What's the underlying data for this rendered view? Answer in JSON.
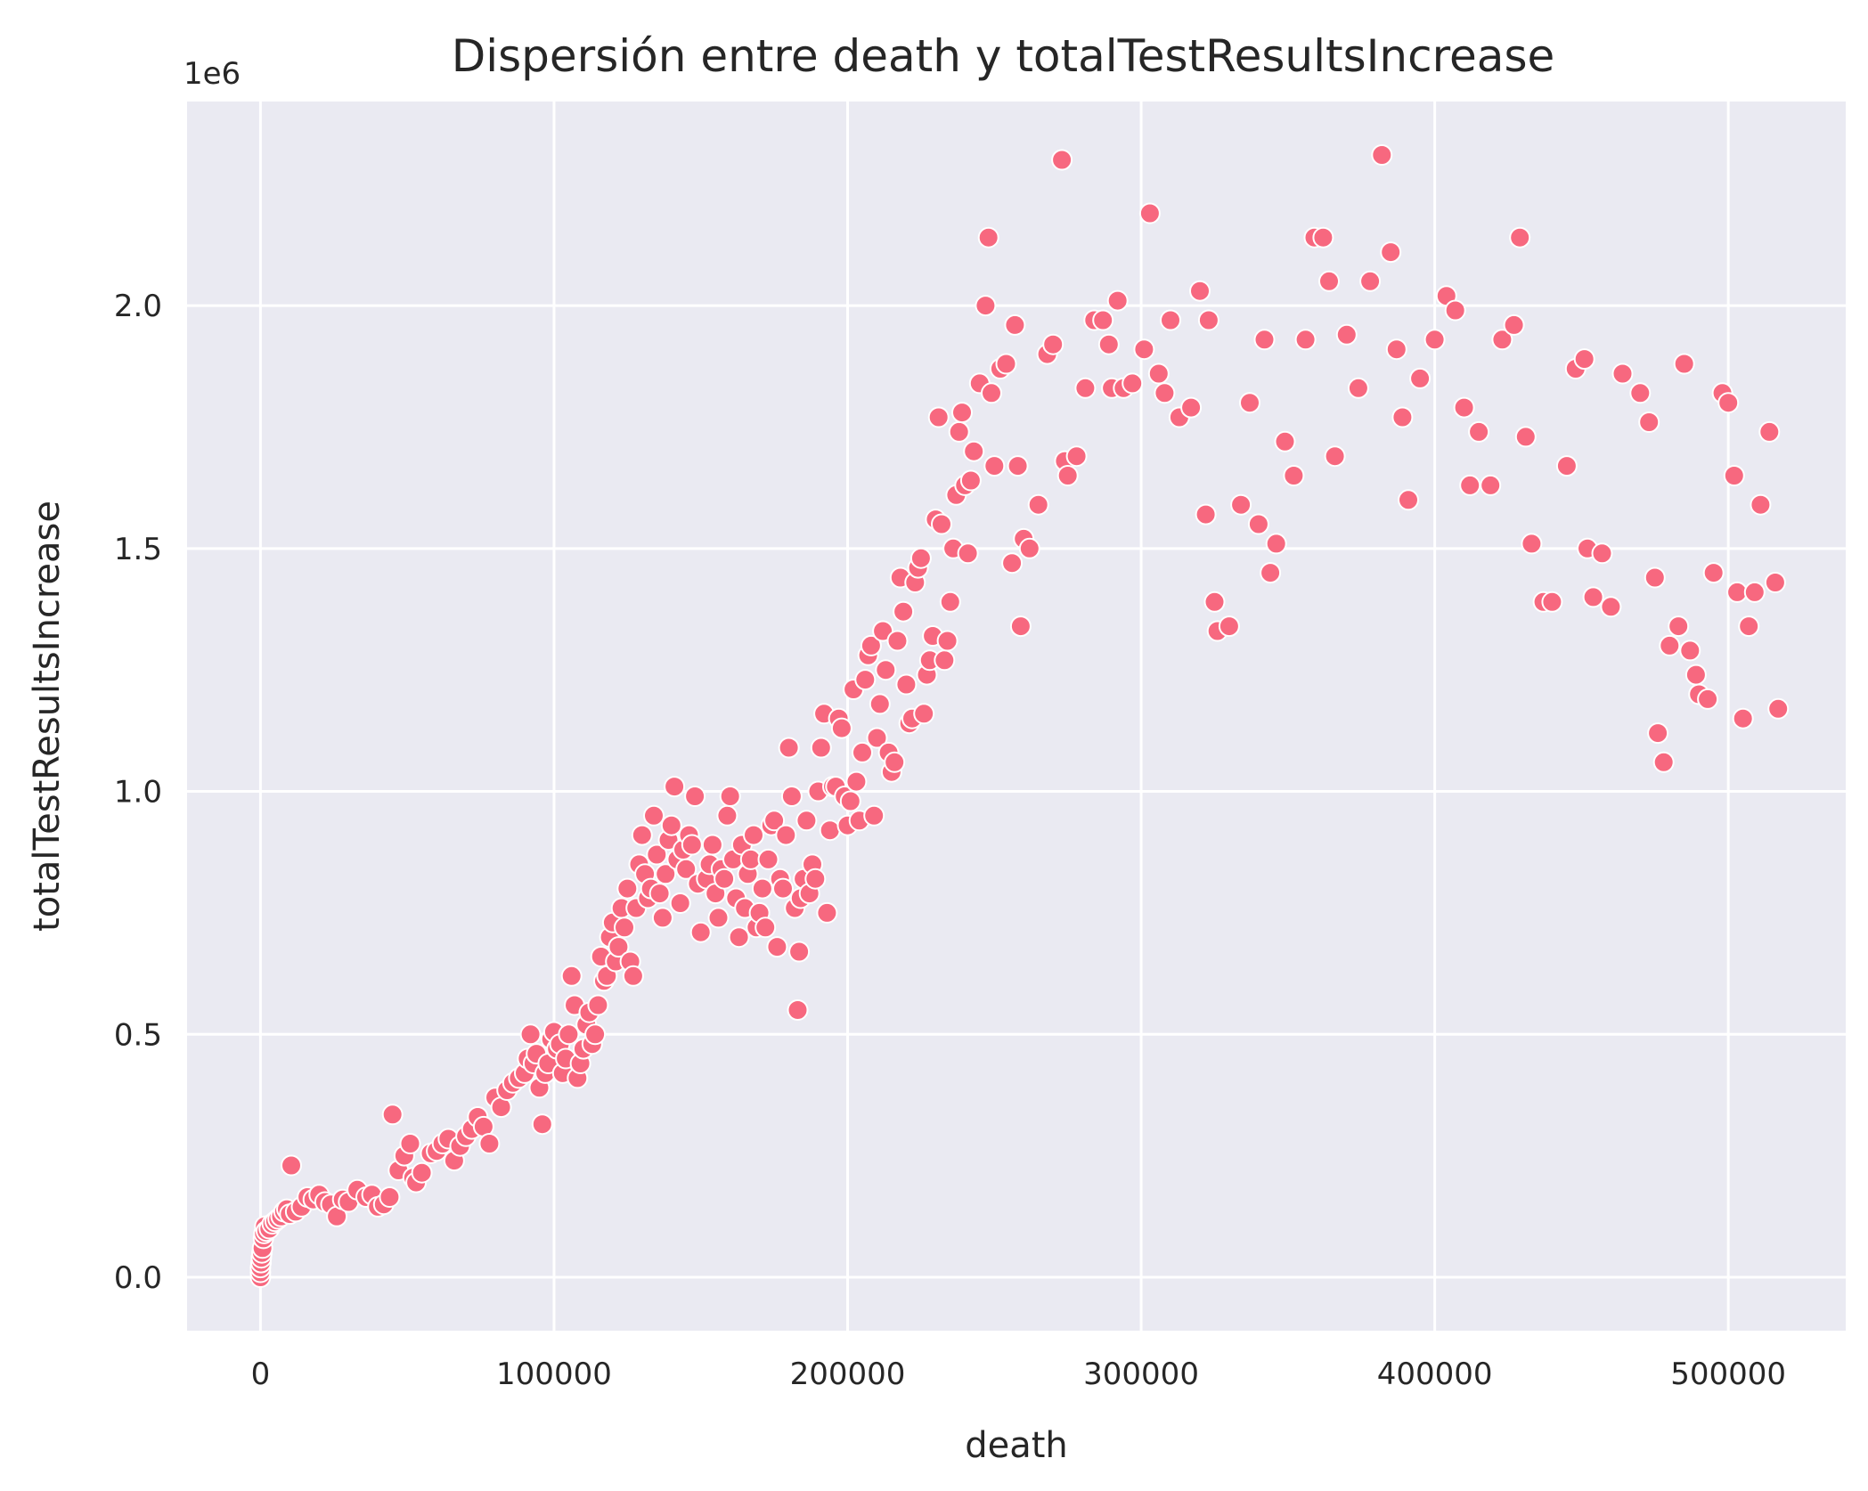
{
  "chart_data": {
    "type": "scatter",
    "title": "Dispersión entre death y totalTestResultsIncrease",
    "xlabel": "death",
    "ylabel": "totalTestResultsIncrease",
    "y_offset_label": "1e6",
    "xlim": [
      -25000,
      540000
    ],
    "ylim": [
      -110000,
      2420000
    ],
    "xticks": [
      0,
      100000,
      200000,
      300000,
      400000,
      500000
    ],
    "xtick_labels": [
      "0",
      "100000",
      "200000",
      "300000",
      "400000",
      "500000"
    ],
    "yticks": [
      0,
      500000,
      1000000,
      1500000,
      2000000
    ],
    "ytick_labels": [
      "0.0",
      "0.5",
      "1.0",
      "1.5",
      "2.0"
    ],
    "grid": true,
    "colors": {
      "background": "#eaeaf2",
      "grid": "#ffffff",
      "marker": "#f7687f",
      "marker_edge": "#ffffff",
      "text": "#262626"
    },
    "points": [
      [
        0,
        0
      ],
      [
        0,
        10000
      ],
      [
        0,
        20000
      ],
      [
        200,
        30000
      ],
      [
        300,
        40000
      ],
      [
        500,
        50000
      ],
      [
        700,
        60000
      ],
      [
        1000,
        80000
      ],
      [
        1200,
        90000
      ],
      [
        1500,
        105000
      ],
      [
        2000,
        95000
      ],
      [
        3000,
        100000
      ],
      [
        4000,
        110000
      ],
      [
        5000,
        115000
      ],
      [
        6000,
        120000
      ],
      [
        7000,
        125000
      ],
      [
        8000,
        135000
      ],
      [
        9000,
        140000
      ],
      [
        10000,
        130000
      ],
      [
        10500,
        230000
      ],
      [
        12000,
        135000
      ],
      [
        14000,
        145000
      ],
      [
        16000,
        165000
      ],
      [
        18000,
        160000
      ],
      [
        20000,
        170000
      ],
      [
        22000,
        155000
      ],
      [
        24000,
        150000
      ],
      [
        26000,
        125000
      ],
      [
        28000,
        160000
      ],
      [
        30000,
        155000
      ],
      [
        33000,
        180000
      ],
      [
        36000,
        165000
      ],
      [
        38000,
        170000
      ],
      [
        40000,
        145000
      ],
      [
        42000,
        150000
      ],
      [
        44000,
        165000
      ],
      [
        45000,
        335000
      ],
      [
        47000,
        220000
      ],
      [
        49000,
        250000
      ],
      [
        51000,
        275000
      ],
      [
        52000,
        205000
      ],
      [
        53000,
        195000
      ],
      [
        55000,
        215000
      ],
      [
        58000,
        255000
      ],
      [
        60000,
        260000
      ],
      [
        62000,
        275000
      ],
      [
        64000,
        285000
      ],
      [
        66000,
        240000
      ],
      [
        68000,
        270000
      ],
      [
        70000,
        290000
      ],
      [
        72000,
        305000
      ],
      [
        74000,
        330000
      ],
      [
        76000,
        310000
      ],
      [
        78000,
        275000
      ],
      [
        80000,
        370000
      ],
      [
        82000,
        350000
      ],
      [
        84000,
        385000
      ],
      [
        86000,
        400000
      ],
      [
        88000,
        410000
      ],
      [
        90000,
        420000
      ],
      [
        91000,
        450000
      ],
      [
        92000,
        500000
      ],
      [
        93000,
        440000
      ],
      [
        94000,
        460000
      ],
      [
        95000,
        390000
      ],
      [
        96000,
        315000
      ],
      [
        97000,
        420000
      ],
      [
        98000,
        440000
      ],
      [
        99000,
        490000
      ],
      [
        100000,
        505000
      ],
      [
        101000,
        470000
      ],
      [
        102000,
        480000
      ],
      [
        103000,
        420000
      ],
      [
        104000,
        450000
      ],
      [
        105000,
        500000
      ],
      [
        106000,
        620000
      ],
      [
        107000,
        560000
      ],
      [
        108000,
        410000
      ],
      [
        109000,
        440000
      ],
      [
        110000,
        470000
      ],
      [
        111000,
        520000
      ],
      [
        112000,
        545000
      ],
      [
        113000,
        480000
      ],
      [
        114000,
        500000
      ],
      [
        115000,
        560000
      ],
      [
        116000,
        660000
      ],
      [
        117000,
        610000
      ],
      [
        118000,
        620000
      ],
      [
        119000,
        700000
      ],
      [
        120000,
        730000
      ],
      [
        121000,
        650000
      ],
      [
        122000,
        680000
      ],
      [
        123000,
        760000
      ],
      [
        124000,
        720000
      ],
      [
        125000,
        800000
      ],
      [
        126000,
        650000
      ],
      [
        127000,
        620000
      ],
      [
        128000,
        760000
      ],
      [
        129000,
        850000
      ],
      [
        130000,
        910000
      ],
      [
        131000,
        830000
      ],
      [
        132000,
        780000
      ],
      [
        133000,
        800000
      ],
      [
        134000,
        950000
      ],
      [
        135000,
        870000
      ],
      [
        136000,
        790000
      ],
      [
        137000,
        740000
      ],
      [
        138000,
        830000
      ],
      [
        139000,
        900000
      ],
      [
        140000,
        930000
      ],
      [
        141000,
        1010000
      ],
      [
        142000,
        860000
      ],
      [
        143000,
        770000
      ],
      [
        144000,
        880000
      ],
      [
        145000,
        840000
      ],
      [
        146000,
        910000
      ],
      [
        147000,
        890000
      ],
      [
        148000,
        990000
      ],
      [
        149000,
        810000
      ],
      [
        150000,
        710000
      ],
      [
        152000,
        820000
      ],
      [
        153000,
        850000
      ],
      [
        154000,
        890000
      ],
      [
        155000,
        790000
      ],
      [
        156000,
        740000
      ],
      [
        157000,
        840000
      ],
      [
        158000,
        820000
      ],
      [
        159000,
        950000
      ],
      [
        160000,
        990000
      ],
      [
        161000,
        860000
      ],
      [
        162000,
        780000
      ],
      [
        163000,
        700000
      ],
      [
        164000,
        890000
      ],
      [
        165000,
        760000
      ],
      [
        166000,
        830000
      ],
      [
        167000,
        860000
      ],
      [
        168000,
        910000
      ],
      [
        169000,
        720000
      ],
      [
        170000,
        750000
      ],
      [
        171000,
        800000
      ],
      [
        172000,
        720000
      ],
      [
        173000,
        860000
      ],
      [
        174000,
        930000
      ],
      [
        175000,
        940000
      ],
      [
        176000,
        680000
      ],
      [
        177000,
        820000
      ],
      [
        178000,
        800000
      ],
      [
        179000,
        910000
      ],
      [
        180000,
        1090000
      ],
      [
        181000,
        990000
      ],
      [
        182000,
        760000
      ],
      [
        183000,
        550000
      ],
      [
        183500,
        670000
      ],
      [
        184000,
        780000
      ],
      [
        185000,
        820000
      ],
      [
        186000,
        940000
      ],
      [
        187000,
        790000
      ],
      [
        188000,
        850000
      ],
      [
        189000,
        820000
      ],
      [
        190000,
        1000000
      ],
      [
        191000,
        1090000
      ],
      [
        192000,
        1160000
      ],
      [
        193000,
        750000
      ],
      [
        194000,
        920000
      ],
      [
        195000,
        1010000
      ],
      [
        196000,
        1010000
      ],
      [
        197000,
        1150000
      ],
      [
        198000,
        1130000
      ],
      [
        199000,
        990000
      ],
      [
        200000,
        930000
      ],
      [
        201000,
        980000
      ],
      [
        202000,
        1210000
      ],
      [
        203000,
        1020000
      ],
      [
        204000,
        940000
      ],
      [
        205000,
        1080000
      ],
      [
        206000,
        1230000
      ],
      [
        207000,
        1280000
      ],
      [
        208000,
        1300000
      ],
      [
        209000,
        950000
      ],
      [
        210000,
        1110000
      ],
      [
        211000,
        1180000
      ],
      [
        212000,
        1330000
      ],
      [
        213000,
        1250000
      ],
      [
        214000,
        1080000
      ],
      [
        215000,
        1040000
      ],
      [
        216000,
        1060000
      ],
      [
        217000,
        1310000
      ],
      [
        218000,
        1440000
      ],
      [
        219000,
        1370000
      ],
      [
        220000,
        1220000
      ],
      [
        221000,
        1140000
      ],
      [
        222000,
        1150000
      ],
      [
        223000,
        1430000
      ],
      [
        224000,
        1460000
      ],
      [
        225000,
        1480000
      ],
      [
        226000,
        1160000
      ],
      [
        227000,
        1240000
      ],
      [
        228000,
        1270000
      ],
      [
        229000,
        1320000
      ],
      [
        230000,
        1560000
      ],
      [
        231000,
        1770000
      ],
      [
        232000,
        1550000
      ],
      [
        233000,
        1270000
      ],
      [
        234000,
        1310000
      ],
      [
        235000,
        1390000
      ],
      [
        236000,
        1500000
      ],
      [
        237000,
        1610000
      ],
      [
        238000,
        1740000
      ],
      [
        239000,
        1780000
      ],
      [
        240000,
        1630000
      ],
      [
        241000,
        1490000
      ],
      [
        242000,
        1640000
      ],
      [
        243000,
        1700000
      ],
      [
        245000,
        1840000
      ],
      [
        247000,
        2000000
      ],
      [
        248000,
        2140000
      ],
      [
        249000,
        1820000
      ],
      [
        250000,
        1670000
      ],
      [
        252000,
        1870000
      ],
      [
        254000,
        1880000
      ],
      [
        256000,
        1470000
      ],
      [
        257000,
        1960000
      ],
      [
        258000,
        1670000
      ],
      [
        259000,
        1340000
      ],
      [
        260000,
        1520000
      ],
      [
        262000,
        1500000
      ],
      [
        265000,
        1590000
      ],
      [
        268000,
        1900000
      ],
      [
        270000,
        1920000
      ],
      [
        273000,
        2300000
      ],
      [
        274000,
        1680000
      ],
      [
        275000,
        1650000
      ],
      [
        278000,
        1690000
      ],
      [
        281000,
        1830000
      ],
      [
        284000,
        1970000
      ],
      [
        287000,
        1970000
      ],
      [
        289000,
        1920000
      ],
      [
        290000,
        1830000
      ],
      [
        292000,
        2010000
      ],
      [
        294000,
        1830000
      ],
      [
        297000,
        1840000
      ],
      [
        301000,
        1910000
      ],
      [
        303000,
        2190000
      ],
      [
        306000,
        1860000
      ],
      [
        308000,
        1820000
      ],
      [
        310000,
        1970000
      ],
      [
        313000,
        1770000
      ],
      [
        317000,
        1790000
      ],
      [
        320000,
        2030000
      ],
      [
        322000,
        1570000
      ],
      [
        323000,
        1970000
      ],
      [
        325000,
        1390000
      ],
      [
        326000,
        1330000
      ],
      [
        330000,
        1340000
      ],
      [
        334000,
        1590000
      ],
      [
        337000,
        1800000
      ],
      [
        340000,
        1550000
      ],
      [
        342000,
        1930000
      ],
      [
        344000,
        1450000
      ],
      [
        346000,
        1510000
      ],
      [
        349000,
        1720000
      ],
      [
        352000,
        1650000
      ],
      [
        356000,
        1930000
      ],
      [
        359000,
        2140000
      ],
      [
        362000,
        2140000
      ],
      [
        364000,
        2050000
      ],
      [
        366000,
        1690000
      ],
      [
        370000,
        1940000
      ],
      [
        374000,
        1830000
      ],
      [
        378000,
        2050000
      ],
      [
        382000,
        2310000
      ],
      [
        385000,
        2110000
      ],
      [
        387000,
        1910000
      ],
      [
        389000,
        1770000
      ],
      [
        391000,
        1600000
      ],
      [
        395000,
        1850000
      ],
      [
        400000,
        1930000
      ],
      [
        404000,
        2020000
      ],
      [
        407000,
        1990000
      ],
      [
        410000,
        1790000
      ],
      [
        412000,
        1630000
      ],
      [
        415000,
        1740000
      ],
      [
        419000,
        1630000
      ],
      [
        423000,
        1930000
      ],
      [
        427000,
        1960000
      ],
      [
        429000,
        2140000
      ],
      [
        431000,
        1730000
      ],
      [
        433000,
        1510000
      ],
      [
        437000,
        1390000
      ],
      [
        440000,
        1390000
      ],
      [
        445000,
        1670000
      ],
      [
        448000,
        1870000
      ],
      [
        451000,
        1890000
      ],
      [
        452000,
        1500000
      ],
      [
        454000,
        1400000
      ],
      [
        457000,
        1490000
      ],
      [
        460000,
        1380000
      ],
      [
        464000,
        1860000
      ],
      [
        470000,
        1820000
      ],
      [
        473000,
        1760000
      ],
      [
        475000,
        1440000
      ],
      [
        476000,
        1120000
      ],
      [
        478000,
        1060000
      ],
      [
        480000,
        1300000
      ],
      [
        483000,
        1340000
      ],
      [
        485000,
        1880000
      ],
      [
        487000,
        1290000
      ],
      [
        489000,
        1240000
      ],
      [
        490000,
        1200000
      ],
      [
        493000,
        1190000
      ],
      [
        495000,
        1450000
      ],
      [
        498000,
        1820000
      ],
      [
        500000,
        1800000
      ],
      [
        502000,
        1650000
      ],
      [
        503000,
        1410000
      ],
      [
        505000,
        1150000
      ],
      [
        507000,
        1340000
      ],
      [
        509000,
        1410000
      ],
      [
        511000,
        1590000
      ],
      [
        514000,
        1740000
      ],
      [
        516000,
        1430000
      ],
      [
        517000,
        1170000
      ]
    ]
  }
}
